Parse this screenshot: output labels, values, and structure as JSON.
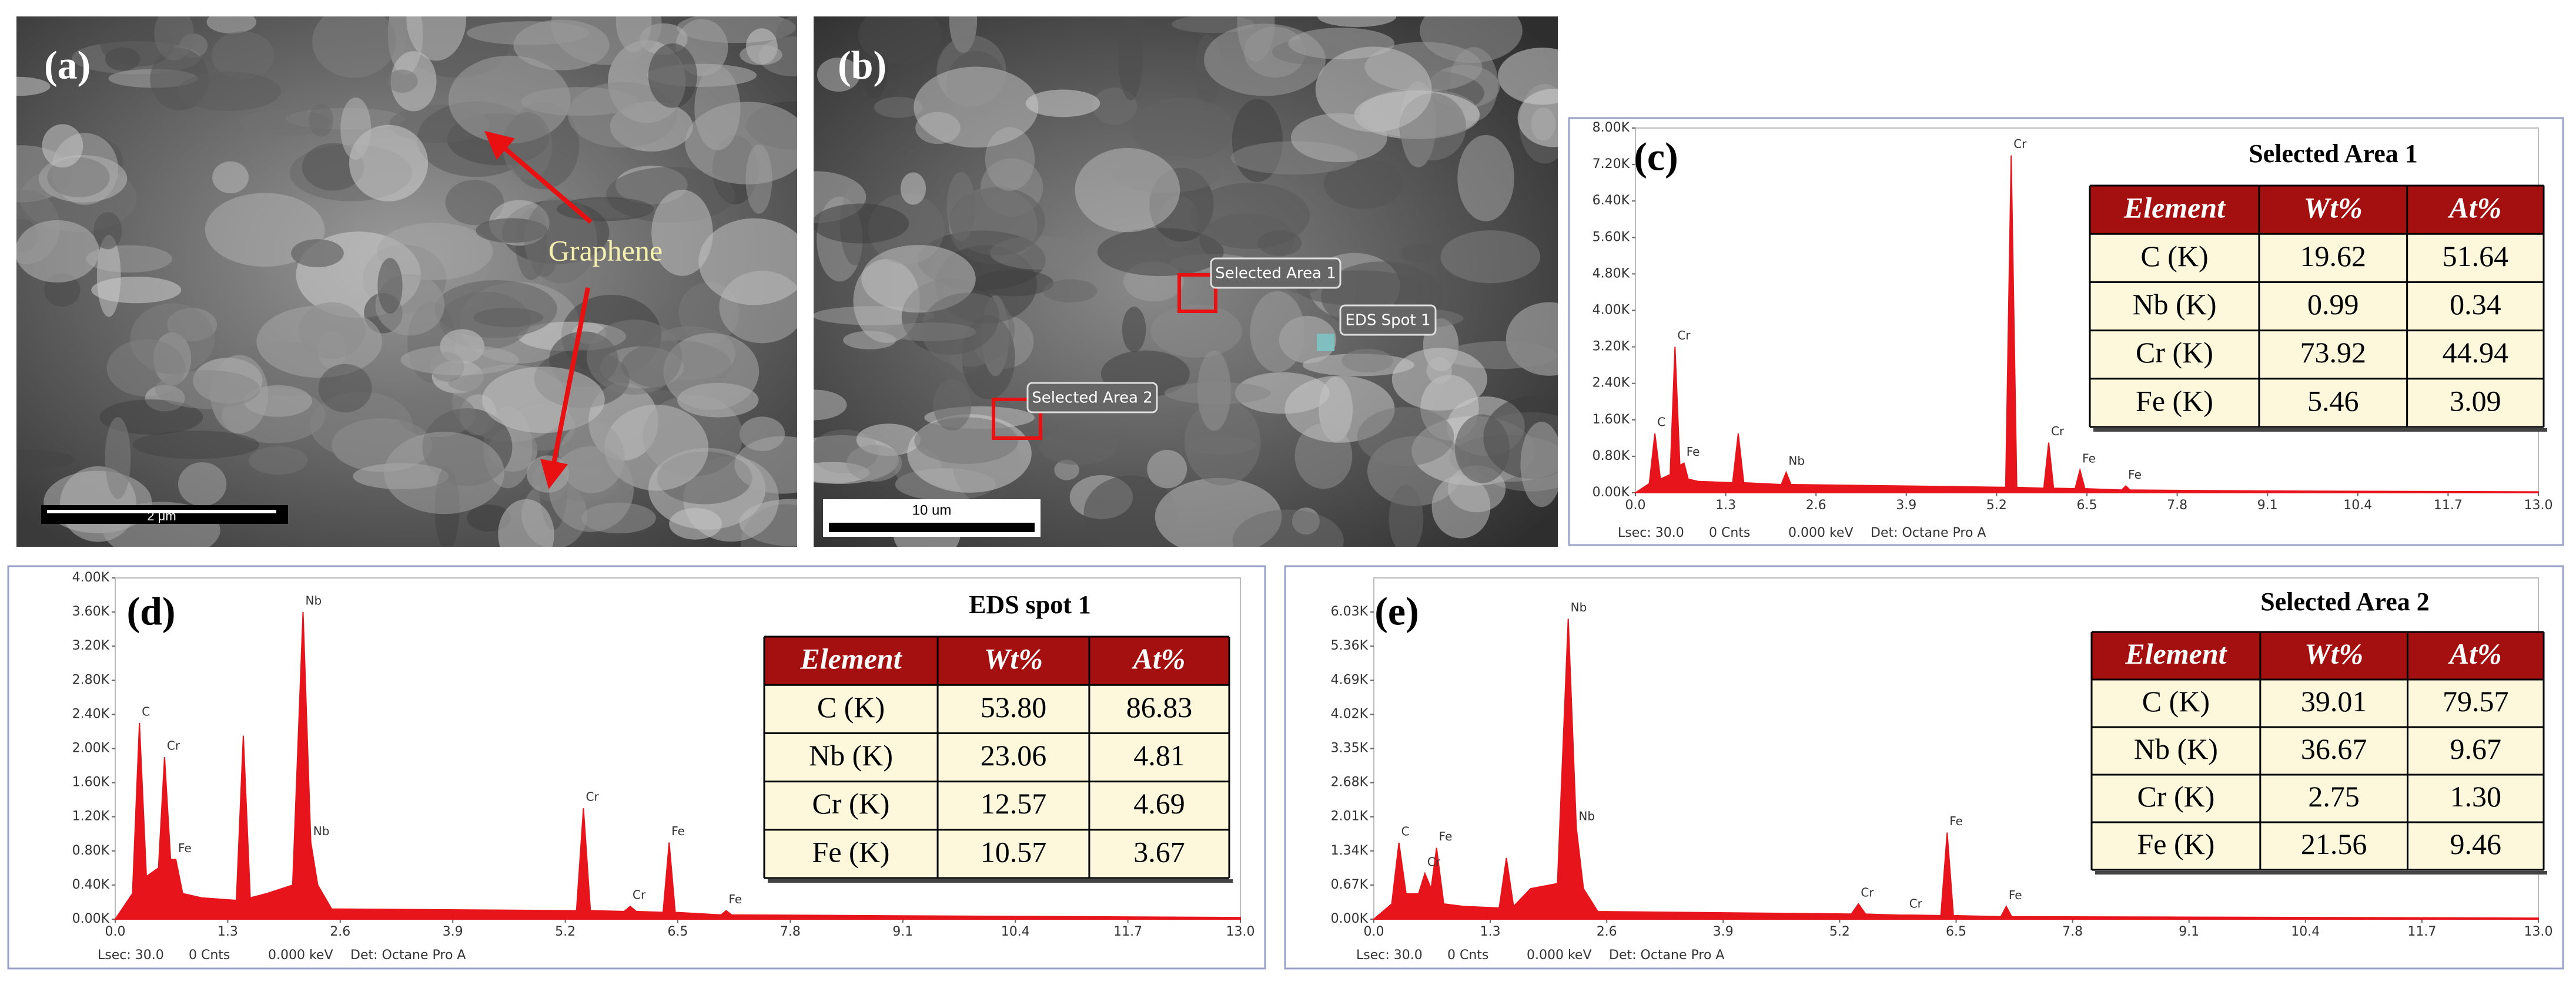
{
  "panels": [
    {
      "label": "(a)",
      "annotation": "Graphene",
      "scale_bar": "2 μm"
    },
    {
      "label": "(b)",
      "annotations": [
        "Selected Area 1",
        "EDS Spot 1",
        "Selected Area 2"
      ],
      "scale_bar": "10 um"
    }
  ],
  "chart_data": [
    {
      "type": "area",
      "panel_label": "(c)",
      "table_title": "Selected Area 1",
      "color": "#e8141b",
      "table": {
        "header": [
          "Element",
          "Wt%",
          "At%"
        ],
        "rows": [
          [
            "C (K)",
            "19.62",
            "51.64"
          ],
          [
            "Nb (K)",
            "0.99",
            "0.34"
          ],
          [
            "Cr (K)",
            "73.92",
            "44.94"
          ],
          [
            "Fe (K)",
            "5.46",
            "3.09"
          ]
        ]
      },
      "footer": [
        "Lsec: 30.0",
        "0 Cnts",
        "0.000 keV",
        "Det: Octane Pro A"
      ],
      "x": [
        0.0,
        0.2,
        0.28,
        0.36,
        0.5,
        0.57,
        0.64,
        0.7,
        0.76,
        0.9,
        1.4,
        1.48,
        1.56,
        2.1,
        2.17,
        2.24,
        5.33,
        5.41,
        5.49,
        5.88,
        5.95,
        6.02,
        6.33,
        6.4,
        6.47,
        7.0,
        7.06,
        7.12,
        9.0,
        13.0
      ],
      "values": [
        0,
        200,
        1300,
        300,
        400,
        3200,
        600,
        650,
        300,
        250,
        220,
        1300,
        220,
        180,
        450,
        180,
        120,
        7400,
        120,
        100,
        1100,
        100,
        90,
        500,
        90,
        60,
        150,
        60,
        40,
        20
      ],
      "point_labels": [
        null,
        null,
        "C",
        null,
        null,
        "Cr",
        null,
        "Fe",
        null,
        null,
        null,
        null,
        null,
        null,
        "Nb",
        null,
        null,
        "Cr",
        null,
        null,
        "Cr",
        null,
        null,
        "Fe",
        null,
        null,
        "Fe",
        null,
        null,
        null
      ],
      "xlim": [
        0,
        13
      ],
      "xticks": [
        {
          "value": 0,
          "label": "0.0"
        },
        1.3,
        2.6,
        3.9,
        5.2,
        6.5,
        7.8,
        9.1,
        10.4,
        11.7,
        {
          "value": 13,
          "label": "13.0"
        }
      ],
      "ylim": [
        0,
        8000
      ],
      "yticks": [
        {
          "value": 0,
          "label": "0.00K"
        },
        {
          "value": 800,
          "label": "0.80K"
        },
        {
          "value": 1600,
          "label": "1.60K"
        },
        {
          "value": 2400,
          "label": "2.40K"
        },
        {
          "value": 3200,
          "label": "3.20K"
        },
        {
          "value": 4000,
          "label": "4.00K"
        },
        {
          "value": 4800,
          "label": "4.80K"
        },
        {
          "value": 5600,
          "label": "5.60K"
        },
        {
          "value": 6400,
          "label": "6.40K"
        },
        {
          "value": 7200,
          "label": "7.20K"
        },
        {
          "value": 8000,
          "label": "8.00K"
        }
      ]
    },
    {
      "type": "area",
      "panel_label": "(d)",
      "table_title": "EDS spot 1",
      "color": "#e8141b",
      "table": {
        "header": [
          "Element",
          "Wt%",
          "At%"
        ],
        "rows": [
          [
            "C (K)",
            "53.80",
            "86.83"
          ],
          [
            "Nb (K)",
            "23.06",
            "4.81"
          ],
          [
            "Cr (K)",
            "12.57",
            "4.69"
          ],
          [
            "Fe (K)",
            "10.57",
            "3.67"
          ]
        ]
      },
      "footer": [
        "Lsec: 30.0",
        "0 Cnts",
        "0.000 keV",
        "Det: Octane Pro A"
      ],
      "x": [
        0.0,
        0.2,
        0.28,
        0.36,
        0.5,
        0.57,
        0.64,
        0.7,
        0.78,
        1.0,
        1.4,
        1.48,
        1.56,
        1.75,
        2.05,
        2.17,
        2.26,
        2.34,
        2.5,
        5.33,
        5.41,
        5.49,
        5.88,
        5.95,
        6.02,
        6.33,
        6.4,
        6.47,
        7.0,
        7.06,
        7.12,
        9.0,
        13.0
      ],
      "values": [
        0,
        300,
        2300,
        500,
        600,
        1900,
        700,
        700,
        300,
        250,
        220,
        2150,
        250,
        300,
        400,
        3600,
        900,
        400,
        120,
        100,
        1300,
        100,
        90,
        150,
        90,
        80,
        900,
        80,
        50,
        100,
        50,
        40,
        20
      ],
      "point_labels": [
        null,
        null,
        "C",
        null,
        null,
        "Cr",
        null,
        "Fe",
        null,
        null,
        null,
        null,
        null,
        null,
        null,
        "Nb",
        "Nb",
        null,
        null,
        null,
        "Cr",
        null,
        null,
        "Cr",
        null,
        null,
        "Fe",
        null,
        null,
        "Fe",
        null,
        null,
        null
      ],
      "xlim": [
        0,
        13
      ],
      "xticks": [
        {
          "value": 0,
          "label": "0.0"
        },
        1.3,
        2.6,
        3.9,
        5.2,
        6.5,
        7.8,
        9.1,
        10.4,
        11.7,
        {
          "value": 13,
          "label": "13.0"
        }
      ],
      "ylim": [
        0,
        4000
      ],
      "yticks": [
        {
          "value": 0,
          "label": "0.00K"
        },
        {
          "value": 400,
          "label": "0.40K"
        },
        {
          "value": 800,
          "label": "0.80K"
        },
        {
          "value": 1200,
          "label": "1.20K"
        },
        {
          "value": 1600,
          "label": "1.60K"
        },
        {
          "value": 2000,
          "label": "2.00K"
        },
        {
          "value": 2400,
          "label": "2.40K"
        },
        {
          "value": 2800,
          "label": "2.80K"
        },
        {
          "value": 3200,
          "label": "3.20K"
        },
        {
          "value": 3600,
          "label": "3.60K"
        },
        {
          "value": 4000,
          "label": "4.00K"
        }
      ]
    },
    {
      "type": "area",
      "panel_label": "(e)",
      "table_title": "Selected Area 2",
      "color": "#e8141b",
      "table": {
        "header": [
          "Element",
          "Wt%",
          "At%"
        ],
        "rows": [
          [
            "C (K)",
            "39.01",
            "79.57"
          ],
          [
            "Nb (K)",
            "36.67",
            "9.67"
          ],
          [
            "Cr (K)",
            "2.75",
            "1.30"
          ],
          [
            "Fe (K)",
            "21.56",
            "9.46"
          ]
        ]
      },
      "footer": [
        "Lsec: 30.0",
        "0 Cnts",
        "0.000 keV",
        "Det: Octane Pro A"
      ],
      "x": [
        0.0,
        0.2,
        0.28,
        0.36,
        0.5,
        0.57,
        0.64,
        0.7,
        0.78,
        1.0,
        1.4,
        1.48,
        1.56,
        1.75,
        2.05,
        2.17,
        2.26,
        2.34,
        2.5,
        5.33,
        5.41,
        5.49,
        5.88,
        5.95,
        6.02,
        6.33,
        6.4,
        6.47,
        7.0,
        7.06,
        7.12,
        9.0,
        13.0
      ],
      "values": [
        0,
        300,
        1500,
        500,
        500,
        900,
        600,
        1400,
        300,
        250,
        220,
        1200,
        250,
        600,
        700,
        5900,
        1800,
        600,
        150,
        100,
        300,
        100,
        80,
        80,
        80,
        70,
        1700,
        70,
        50,
        250,
        50,
        40,
        20
      ],
      "point_labels": [
        null,
        null,
        "C",
        null,
        null,
        "Cr",
        null,
        "Fe",
        null,
        null,
        null,
        null,
        null,
        null,
        null,
        "Nb",
        "Nb",
        null,
        null,
        null,
        "Cr",
        null,
        null,
        "Cr",
        null,
        null,
        "Fe",
        null,
        null,
        "Fe",
        null,
        null,
        null
      ],
      "xlim": [
        0,
        13
      ],
      "xticks": [
        {
          "value": 0,
          "label": "0.0"
        },
        1.3,
        2.6,
        3.9,
        5.2,
        6.5,
        7.8,
        9.1,
        10.4,
        11.7,
        {
          "value": 13,
          "label": "13.0"
        }
      ],
      "ylim": [
        0,
        6700
      ],
      "yticks": [
        {
          "value": 0,
          "label": "0.00K"
        },
        {
          "value": 670,
          "label": "0.67K"
        },
        {
          "value": 1340,
          "label": "1.34K"
        },
        {
          "value": 2010,
          "label": "2.01K"
        },
        {
          "value": 2680,
          "label": "2.68K"
        },
        {
          "value": 3350,
          "label": "3.35K"
        },
        {
          "value": 4020,
          "label": "4.02K"
        },
        {
          "value": 4690,
          "label": "4.69K"
        },
        {
          "value": 5360,
          "label": "5.36K"
        },
        {
          "value": 6030,
          "label": "6.03K"
        }
      ]
    }
  ]
}
